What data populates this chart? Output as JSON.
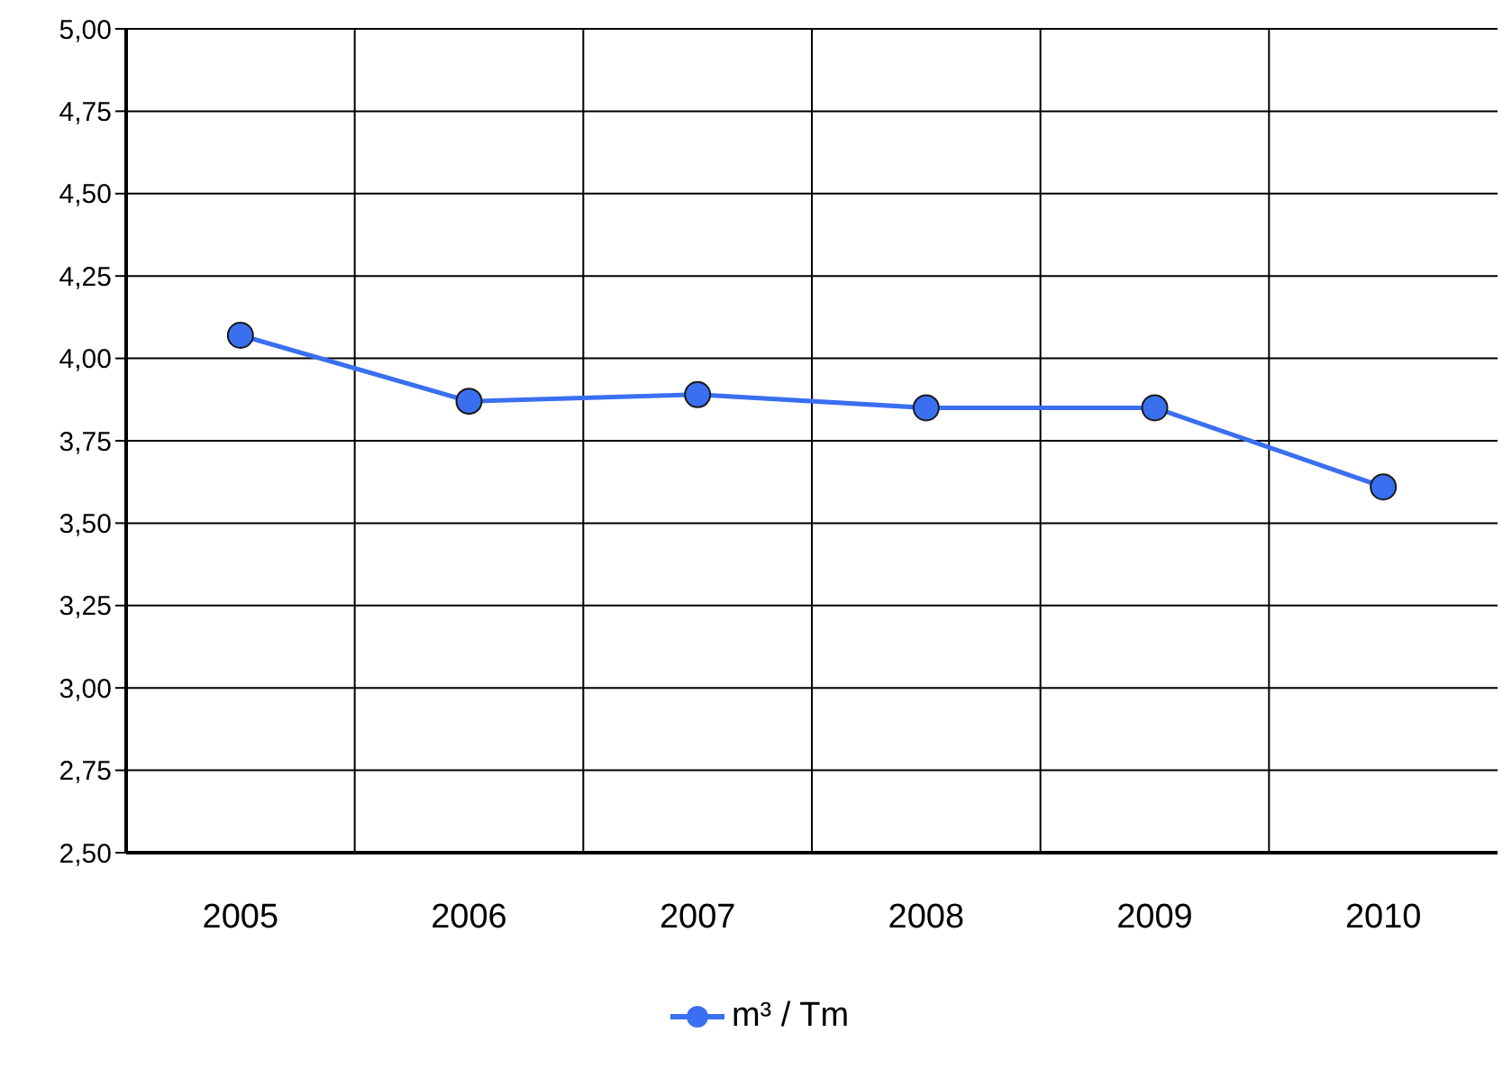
{
  "chart_data": {
    "type": "line",
    "categories": [
      "2005",
      "2006",
      "2007",
      "2008",
      "2009",
      "2010"
    ],
    "series": [
      {
        "name": "m³ / Tm",
        "color": "#3a6ff0",
        "values": [
          4.07,
          3.87,
          3.89,
          3.85,
          3.85,
          3.61
        ]
      }
    ],
    "ylim": [
      2.5,
      5
    ],
    "yticks": [
      {
        "value": 2.5,
        "label": "2,50"
      },
      {
        "value": 2.75,
        "label": "2,75"
      },
      {
        "value": 3,
        "label": "3,00"
      },
      {
        "value": 3.25,
        "label": "3,25"
      },
      {
        "value": 3.5,
        "label": "3,50"
      },
      {
        "value": 3.75,
        "label": "3,75"
      },
      {
        "value": 4,
        "label": "4,00"
      },
      {
        "value": 4.25,
        "label": "4,25"
      },
      {
        "value": 4.5,
        "label": "4,50"
      },
      {
        "value": 4.75,
        "label": "4,75"
      },
      {
        "value": 5,
        "label": "5,00"
      }
    ],
    "grid": true,
    "legend": "bottom",
    "marker": "circle",
    "line_style": "solid"
  }
}
